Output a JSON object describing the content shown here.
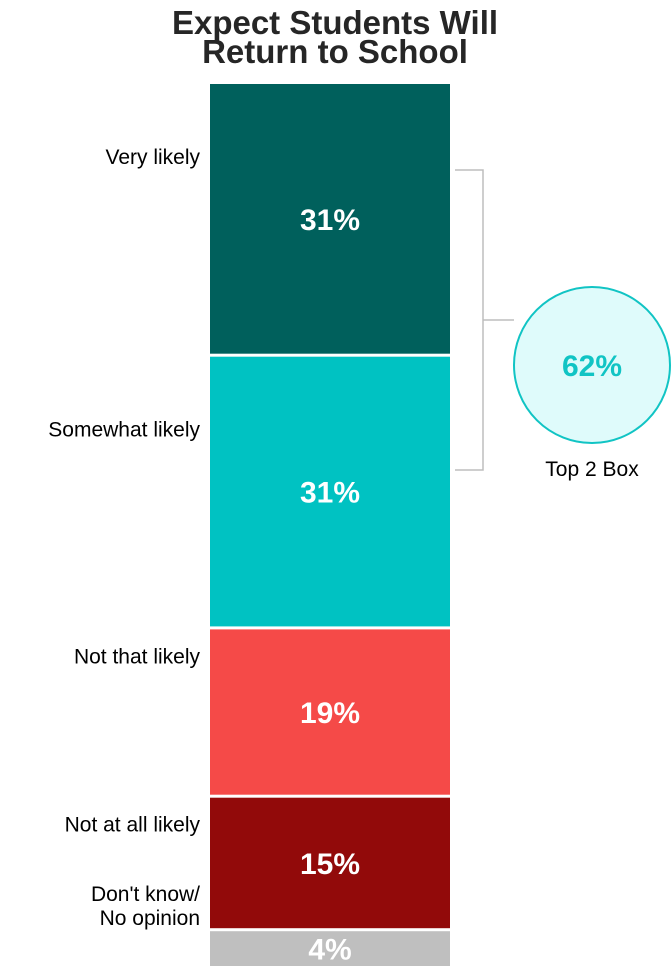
{
  "chart_data": {
    "type": "bar",
    "stacked": true,
    "orientation": "vertical-stack",
    "title": [
      "Expect Students Will",
      "Return to School"
    ],
    "categories": [
      "Very likely",
      "Somewhat likely",
      "Not that likely",
      "Not at all likely",
      "Don't know/ No opinion"
    ],
    "category_label_lines": [
      [
        "Very likely"
      ],
      [
        "Somewhat likely"
      ],
      [
        "Not that likely"
      ],
      [
        "Not at all likely"
      ],
      [
        "Don't know/",
        "No opinion"
      ]
    ],
    "values": [
      31,
      31,
      19,
      15,
      4
    ],
    "value_labels": [
      "31%",
      "31%",
      "19%",
      "15%",
      "4%"
    ],
    "colors": [
      "#00605c",
      "#00c2c2",
      "#f54a48",
      "#920a0a",
      "#bfbfbf"
    ],
    "summary": {
      "label": "Top 2 Box",
      "value_label": "62%",
      "value": 62,
      "spans": [
        "Very likely",
        "Somewhat likely"
      ],
      "circle_fill": "#dffbfb",
      "circle_stroke": "#11c4c4",
      "text_color": "#11c4c4",
      "bracket_color": "#bdbdbd"
    }
  }
}
